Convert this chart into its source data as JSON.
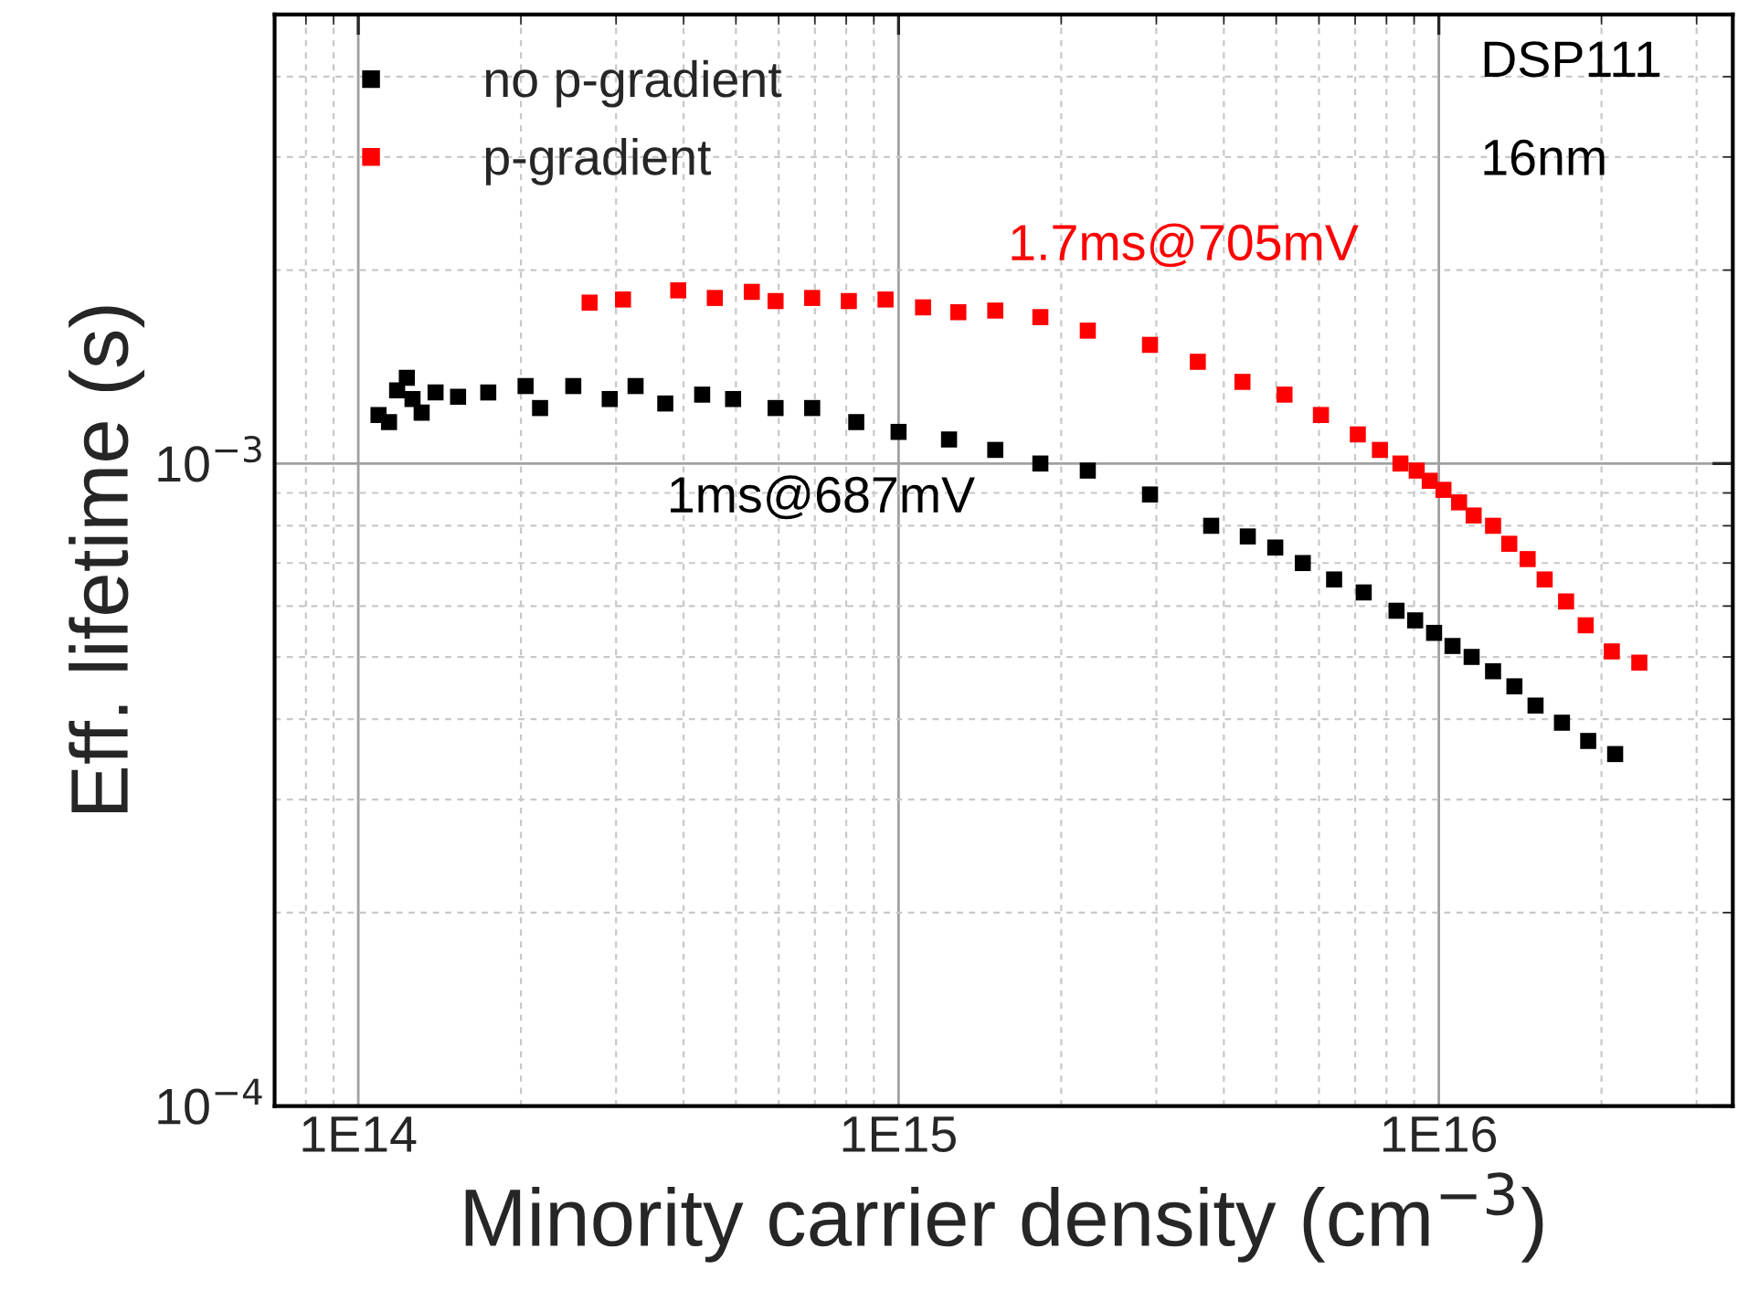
{
  "chart_data": {
    "type": "scatter",
    "xlabel": "Minority carrier density (cm$^{−3}$)",
    "ylabel": "Eff. lifetime (s)",
    "log": "xy",
    "grid": true,
    "legend": "top left",
    "marker": "square",
    "xlim": [
      70000000000000.0,
      3.5e+16
    ],
    "xticks": [
      {
        "value": 100000000000000.0,
        "label": "1E14"
      },
      {
        "value": 1000000000000000.0,
        "label": "1E15"
      },
      {
        "value": 1e+16,
        "label": "1E16"
      }
    ],
    "ylim": [
      0.0001,
      0.005
    ],
    "yticks": [
      {
        "value": 0.0001,
        "label": "10$^{−4}$"
      },
      {
        "value": 0.001,
        "label": "10$^{−3}$"
      }
    ],
    "series": [
      {
        "name": "no p-gradient",
        "color": "#000000",
        "x": [
          109000000000000.0,
          114000000000000.0,
          118000000000000.0,
          123000000000000.0,
          126000000000000.0,
          131000000000000.0,
          139000000000000.0,
          153000000000000.0,
          174000000000000.0,
          204000000000000.0,
          217000000000000.0,
          250000000000000.0,
          292000000000000.0,
          326000000000000.0,
          370000000000000.0,
          433000000000000.0,
          494000000000000.0,
          592000000000000.0,
          692000000000000.0,
          835000000000000.0,
          1000000000000000.0,
          1240000000000000.0,
          1510000000000000.0,
          1830000000000000.0,
          2240000000000000.0,
          2920000000000000.0,
          3790000000000000.0,
          4430000000000000.0,
          4980000000000000.0,
          5600000000000000.0,
          6400000000000000.0,
          7260000000000000.0,
          8350000000000000.0,
          9040000000000000.0,
          9800000000000000.0,
          1.06e+16,
          1.15e+16,
          1.26e+16,
          1.38e+16,
          1.51e+16,
          1.69e+16,
          1.89e+16,
          2.12e+16
        ],
        "values": [
          0.00119,
          0.00116,
          0.0013,
          0.00136,
          0.00126,
          0.0012,
          0.00129,
          0.00127,
          0.00129,
          0.00132,
          0.00122,
          0.00132,
          0.00126,
          0.00132,
          0.00124,
          0.00128,
          0.00126,
          0.00122,
          0.00122,
          0.00116,
          0.00112,
          0.00109,
          0.00105,
          0.001,
          0.000975,
          0.000895,
          0.0008,
          0.00077,
          0.00074,
          0.0007,
          0.00066,
          0.00063,
          0.00059,
          0.00057,
          0.000545,
          0.00052,
          0.0005,
          0.000475,
          0.00045,
          0.00042,
          0.000395,
          0.00037,
          0.000353
        ]
      },
      {
        "name": "p-gradient",
        "color": "#ff0000",
        "x": [
          268000000000000.0,
          309000000000000.0,
          391000000000000.0,
          457000000000000.0,
          535000000000000.0,
          592000000000000.0,
          692000000000000.0,
          809000000000000.0,
          946000000000000.0,
          1110000000000000.0,
          1290000000000000.0,
          1510000000000000.0,
          1830000000000000.0,
          2240000000000000.0,
          2920000000000000.0,
          3580000000000000.0,
          4330000000000000.0,
          5180000000000000.0,
          6050000000000000.0,
          7080000000000000.0,
          7780000000000000.0,
          8490000000000000.0,
          9100000000000000.0,
          9620000000000000.0,
          1.02e+16,
          1.09e+16,
          1.16e+16,
          1.26e+16,
          1.35e+16,
          1.46e+16,
          1.57e+16,
          1.72e+16,
          1.87e+16,
          2.09e+16,
          2.35e+16
        ],
        "values": [
          0.00178,
          0.0018,
          0.00186,
          0.00181,
          0.00185,
          0.00179,
          0.00181,
          0.00179,
          0.0018,
          0.00175,
          0.00172,
          0.00173,
          0.00169,
          0.00161,
          0.00153,
          0.00144,
          0.00134,
          0.00128,
          0.00119,
          0.00111,
          0.00105,
          0.001,
          0.000975,
          0.00094,
          0.00091,
          0.00087,
          0.00083,
          0.0008,
          0.00075,
          0.00071,
          0.00066,
          0.00061,
          0.00056,
          0.00051,
          0.00049
        ]
      }
    ],
    "annotations": [
      "1ms@687mV",
      "1.7ms@705mV",
      "DSP111",
      "16nm"
    ]
  }
}
